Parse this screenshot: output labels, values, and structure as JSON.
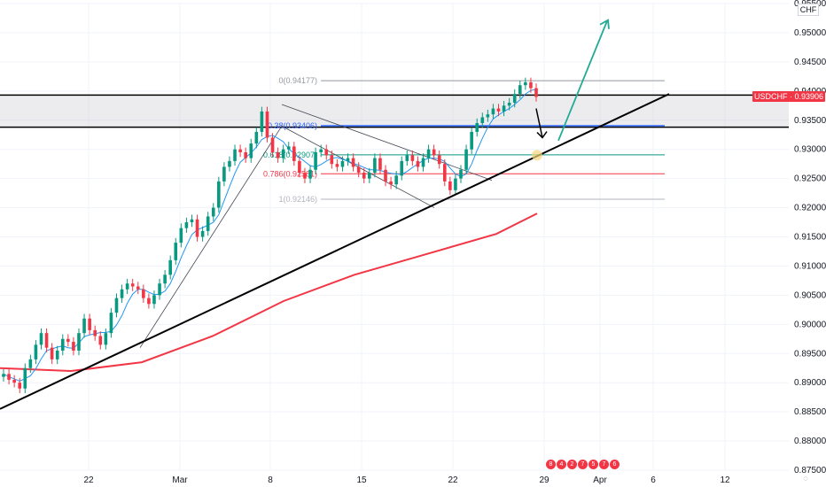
{
  "chart_data": {
    "type": "candlestick",
    "symbol": "USDCHF",
    "current_price": "0.93906",
    "currency": "CHF",
    "y_ticks": [
      "0.95500",
      "0.95000",
      "0.94500",
      "0.94000",
      "0.93500",
      "0.93000",
      "0.92500",
      "0.92000",
      "0.91500",
      "0.91000",
      "0.90500",
      "0.90000",
      "0.89500",
      "0.89000",
      "0.88500",
      "0.88000",
      "0.87500"
    ],
    "x_ticks": [
      "22",
      "Mar",
      "8",
      "15",
      "22",
      "29",
      "Apr",
      "6",
      "12"
    ],
    "ylim": [
      0.875,
      0.955
    ],
    "fib_levels": [
      {
        "label": "0(0.94177)",
        "value": 0.94177,
        "color": "#9598a1"
      },
      {
        "label": "0.38(0.93406)",
        "value": 0.93406,
        "color": "#2962ff"
      },
      {
        "label": "0.618(0.92907)",
        "value": 0.92907,
        "color": "#089981"
      },
      {
        "label": "0.786(0.92581)",
        "value": 0.92581,
        "color": "#f23645"
      },
      {
        "label": "1(0.92146)",
        "value": 0.92146,
        "color": "#b2b5be"
      }
    ],
    "resistance_zone": [
      0.9338,
      0.9393
    ],
    "trendline": {
      "from": [
        0,
        0.8855
      ],
      "to": [
        755,
        0.9395
      ]
    },
    "closes": [
      0.8915,
      0.8905,
      0.89,
      0.889,
      0.8925,
      0.894,
      0.8965,
      0.8985,
      0.896,
      0.894,
      0.8955,
      0.8975,
      0.897,
      0.8955,
      0.8985,
      0.901,
      0.899,
      0.898,
      0.8965,
      0.8985,
      0.902,
      0.9045,
      0.906,
      0.907,
      0.9065,
      0.906,
      0.9045,
      0.9035,
      0.905,
      0.907,
      0.9085,
      0.911,
      0.914,
      0.9165,
      0.9175,
      0.918,
      0.915,
      0.916,
      0.9185,
      0.92,
      0.9245,
      0.927,
      0.928,
      0.93,
      0.9295,
      0.9285,
      0.931,
      0.933,
      0.9365,
      0.932,
      0.9295,
      0.9285,
      0.93,
      0.9305,
      0.928,
      0.926,
      0.925,
      0.9265,
      0.9295,
      0.93,
      0.929,
      0.9275,
      0.927,
      0.928,
      0.9285,
      0.927,
      0.926,
      0.925,
      0.926,
      0.9285,
      0.9265,
      0.9245,
      0.924,
      0.9255,
      0.928,
      0.929,
      0.928,
      0.927,
      0.9285,
      0.93,
      0.929,
      0.9275,
      0.9245,
      0.923,
      0.925,
      0.9265,
      0.93,
      0.933,
      0.9345,
      0.9355,
      0.936,
      0.937,
      0.9365,
      0.9375,
      0.938,
      0.9395,
      0.941,
      0.9415,
      0.9405,
      0.939
    ],
    "ma_fast_end": 0.938,
    "ma_slow": [
      [
        0,
        0.8925
      ],
      [
        80,
        0.892
      ],
      [
        160,
        0.8935
      ],
      [
        240,
        0.898
      ],
      [
        320,
        0.904
      ],
      [
        400,
        0.9085
      ],
      [
        480,
        0.912
      ],
      [
        560,
        0.9155
      ],
      [
        606,
        0.919
      ]
    ],
    "scenario_up": [
      [
        630,
        0.9315
      ],
      [
        685,
        0.952
      ]
    ],
    "scenario_down": [
      [
        605,
        0.937
      ],
      [
        612,
        0.932
      ]
    ],
    "target_marker": 0.929,
    "events": [
      "8",
      "4",
      "2",
      "7",
      "5",
      "7",
      "6"
    ]
  }
}
